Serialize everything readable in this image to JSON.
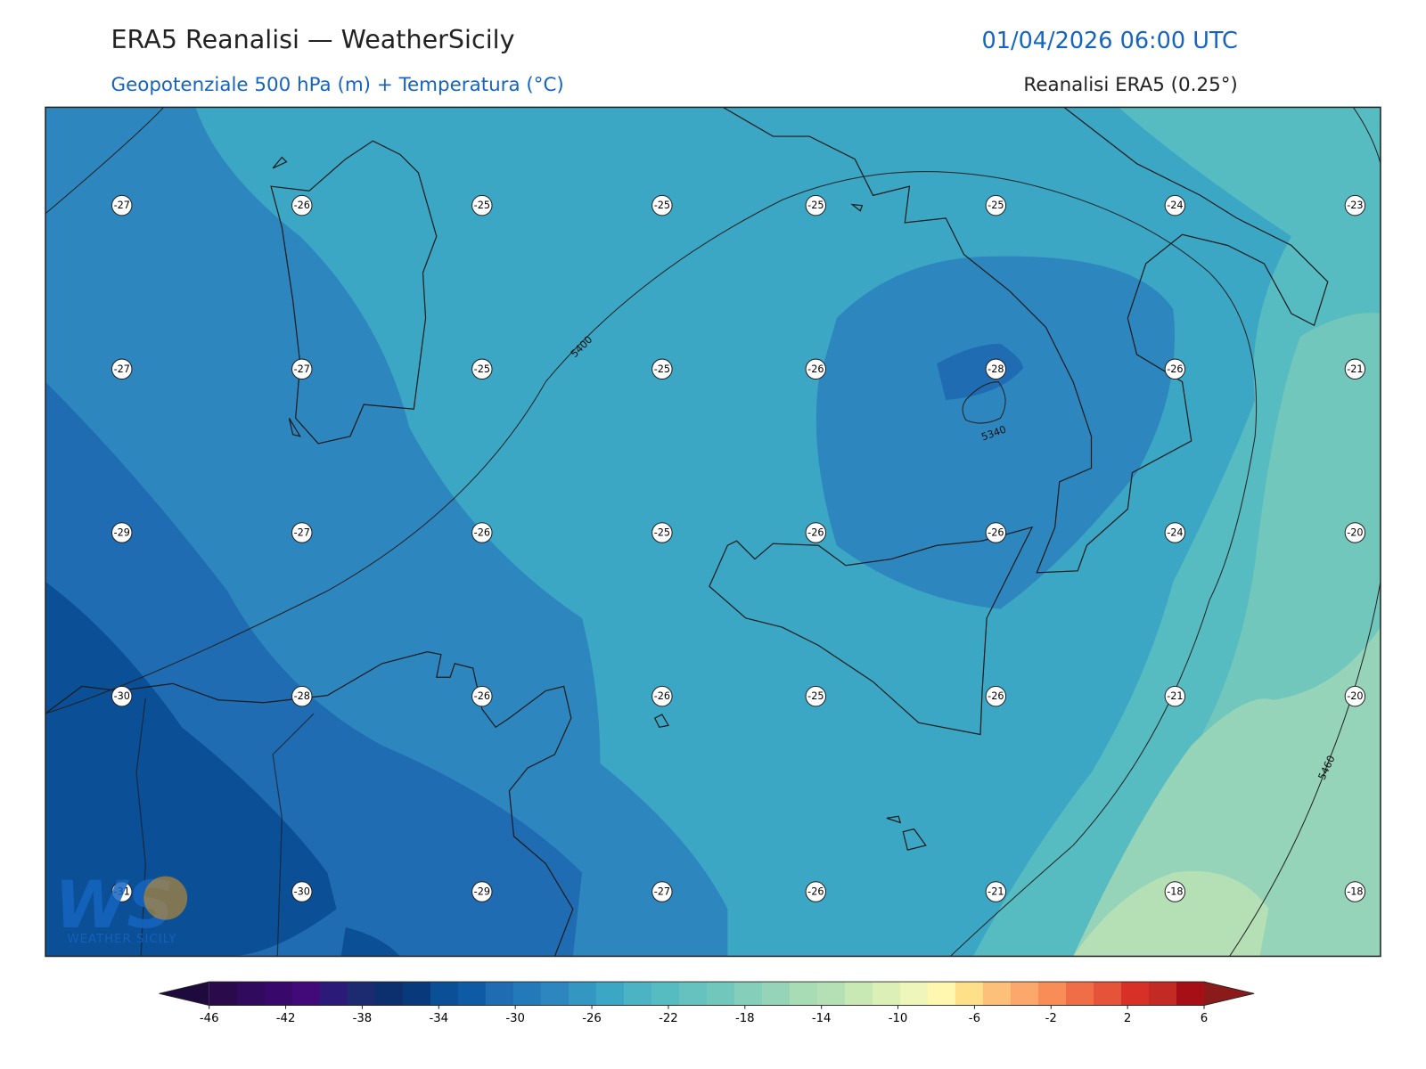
{
  "header": {
    "title": "ERA5 Reanalisi — WeatherSicily",
    "datetime": "01/04/2026 06:00 UTC",
    "subtitle": "Geopotenziale 500 hPa (m) + Temperatura (°C)",
    "source": "Reanalisi ERA5 (0.25°)"
  },
  "temperature_labels": {
    "rows": [
      [
        -27,
        -26,
        -25,
        -25,
        -25,
        -25,
        -24,
        -23
      ],
      [
        -27,
        -27,
        -25,
        -25,
        -26,
        -28,
        -26,
        -21
      ],
      [
        -29,
        -27,
        -26,
        -25,
        -26,
        -26,
        -24,
        -20
      ],
      [
        -30,
        -28,
        -26,
        -26,
        -25,
        -26,
        -21,
        -20
      ],
      [
        -31,
        -30,
        -29,
        -27,
        -26,
        -21,
        -18,
        -18
      ]
    ]
  },
  "contour_labels": [
    5400,
    5340,
    5460
  ],
  "colorbar": {
    "ticks": [
      -46,
      -42,
      -38,
      -34,
      -30,
      -26,
      -22,
      -18,
      -14,
      -10,
      -6,
      -2,
      2,
      6
    ],
    "colors": [
      "#2a0a4a",
      "#300a5c",
      "#38086a",
      "#420a78",
      "#2c1a78",
      "#1c2a70",
      "#0c2f6e",
      "#08397a",
      "#0b4f97",
      "#0e5aa4",
      "#1f6cb3",
      "#2479b8",
      "#2e86bf",
      "#3497c2",
      "#3ba7c4",
      "#4bb3c4",
      "#56bcc2",
      "#65c2bf",
      "#72c7bc",
      "#85cfba",
      "#95d4b9",
      "#a8dcb5",
      "#b5e0b6",
      "#c8e8b4",
      "#dcefb6",
      "#eef7b9",
      "#fff6b0",
      "#fee08b",
      "#fdc07a",
      "#fca86c",
      "#f88d58",
      "#f06e47",
      "#e5533a",
      "#d73027",
      "#c42a24",
      "#a50f15"
    ],
    "under_color": "#1e0a3c",
    "over_color": "#8b1a1a"
  },
  "logo": {
    "initials": "WS",
    "name": "WEATHER SICILY"
  }
}
